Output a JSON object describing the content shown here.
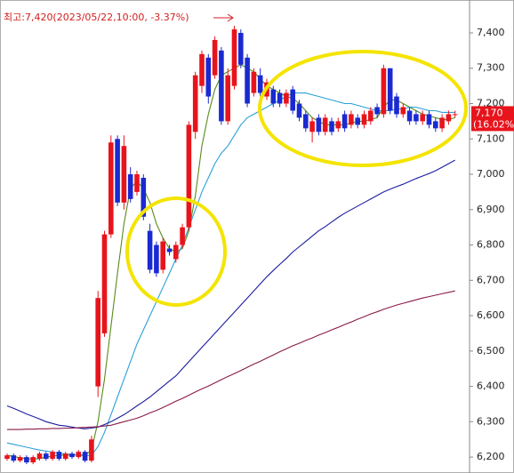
{
  "chart_data": {
    "type": "candlestick",
    "annotation": "최고:7,420(2023/05/22,10:00, -3.37%)",
    "ylim": [
      6155,
      7493
    ],
    "yticks": [
      {
        "value": 6200,
        "label": "6,200"
      },
      {
        "value": 6300,
        "label": "6,300"
      },
      {
        "value": 6400,
        "label": "6,400"
      },
      {
        "value": 6500,
        "label": "6,500"
      },
      {
        "value": 6600,
        "label": "6,600"
      },
      {
        "value": 6700,
        "label": "6,700"
      },
      {
        "value": 6800,
        "label": "6,800"
      },
      {
        "value": 6900,
        "label": "6,900"
      },
      {
        "value": 7000,
        "label": "7,000"
      },
      {
        "value": 7100,
        "label": "7,100"
      },
      {
        "value": 7200,
        "label": "7,200"
      },
      {
        "value": 7300,
        "label": "7,300"
      },
      {
        "value": 7400,
        "label": "7,400"
      }
    ],
    "up_color": "#e8141c",
    "down_color": "#1a2ad0",
    "open": [
      6195,
      6205,
      6190,
      6200,
      6185,
      6195,
      6210,
      6195,
      6215,
      6195,
      6210,
      6200,
      6215,
      6190,
      6400,
      6550,
      6830,
      7100,
      6920,
      7000,
      6950,
      6990,
      6840,
      6800,
      6730,
      6790,
      6760,
      6800,
      6850,
      7120,
      7250,
      7330,
      7280,
      7350,
      7150,
      7250,
      7400,
      7330,
      7230,
      7280,
      7220,
      7240,
      7230,
      7200,
      7240,
      7200,
      7170,
      7120,
      7160,
      7120,
      7150,
      7130,
      7170,
      7140,
      7160,
      7140,
      7150,
      7190,
      7170,
      7300,
      7220,
      7170,
      7180,
      7170,
      7150,
      7170,
      7150,
      7130,
      7150,
      7170
    ],
    "high": [
      6210,
      6210,
      6205,
      6205,
      6205,
      6215,
      6215,
      6220,
      6220,
      6215,
      6215,
      6220,
      6220,
      6260,
      6670,
      6840,
      7110,
      7110,
      7110,
      7020,
      7010,
      7000,
      6860,
      6810,
      6820,
      6800,
      6810,
      6860,
      7150,
      7290,
      7350,
      7340,
      7390,
      7360,
      7300,
      7420,
      7410,
      7340,
      7300,
      7300,
      7270,
      7250,
      7240,
      7240,
      7250,
      7210,
      7180,
      7160,
      7170,
      7170,
      7160,
      7160,
      7180,
      7180,
      7170,
      7180,
      7190,
      7200,
      7310,
      7300,
      7230,
      7200,
      7190,
      7180,
      7180,
      7180,
      7160,
      7170,
      7180,
      7180
    ],
    "low": [
      6190,
      6185,
      6185,
      6180,
      6180,
      6190,
      6190,
      6190,
      6190,
      6190,
      6195,
      6195,
      6185,
      6185,
      6370,
      6540,
      6820,
      6910,
      6900,
      6920,
      6940,
      6870,
      6720,
      6710,
      6720,
      6770,
      6750,
      6790,
      6840,
      7100,
      7230,
      7200,
      7270,
      7140,
      7140,
      7240,
      7300,
      7190,
      7220,
      7220,
      7210,
      7190,
      7190,
      7190,
      7170,
      7150,
      7120,
      7090,
      7110,
      7110,
      7110,
      7120,
      7120,
      7130,
      7130,
      7130,
      7140,
      7160,
      7160,
      7170,
      7160,
      7160,
      7140,
      7140,
      7140,
      7130,
      7120,
      7120,
      7140,
      7160
    ],
    "close": [
      6205,
      6190,
      6200,
      6185,
      6200,
      6210,
      6195,
      6215,
      6195,
      6210,
      6200,
      6215,
      6190,
      6250,
      6650,
      6830,
      7090,
      6920,
      7080,
      6930,
      7000,
      6880,
      6730,
      6720,
      6810,
      6780,
      6800,
      6850,
      7140,
      7280,
      7340,
      7220,
      7380,
      7150,
      7280,
      7410,
      7310,
      7200,
      7290,
      7230,
      7260,
      7200,
      7200,
      7230,
      7180,
      7160,
      7130,
      7150,
      7120,
      7160,
      7120,
      7150,
      7130,
      7170,
      7140,
      7170,
      7180,
      7170,
      7300,
      7180,
      7170,
      7190,
      7150,
      7150,
      7170,
      7140,
      7130,
      7160,
      7170,
      7170
    ],
    "lines": [
      {
        "color": "#5a8a1a",
        "values": [
          6205,
          6202,
          6198,
          6196,
          6194,
          6196,
          6200,
          6203,
          6205,
          6206,
          6205,
          6207,
          6205,
          6220,
          6300,
          6420,
          6570,
          6720,
          6860,
          6960,
          6980,
          6960,
          6920,
          6860,
          6820,
          6790,
          6780,
          6790,
          6840,
          6940,
          7080,
          7170,
          7240,
          7280,
          7290,
          7300,
          7310,
          7300,
          7290,
          7270,
          7250,
          7240,
          7230,
          7220,
          7215,
          7200,
          7180,
          7160,
          7150,
          7140,
          7140,
          7140,
          7140,
          7145,
          7150,
          7150,
          7155,
          7160,
          7190,
          7210,
          7210,
          7200,
          7190,
          7180,
          7170,
          7165,
          7160,
          7155,
          7155,
          7160
        ]
      },
      {
        "color": "#2aa0d8",
        "values": [
          6240,
          6236,
          6232,
          6228,
          6224,
          6220,
          6217,
          6214,
          6211,
          6209,
          6207,
          6205,
          6204,
          6205,
          6230,
          6270,
          6320,
          6370,
          6420,
          6470,
          6520,
          6560,
          6600,
          6640,
          6680,
          6720,
          6760,
          6800,
          6850,
          6900,
          6950,
          6990,
          7030,
          7060,
          7080,
          7110,
          7140,
          7160,
          7170,
          7180,
          7190,
          7200,
          7210,
          7220,
          7230,
          7230,
          7230,
          7225,
          7220,
          7215,
          7210,
          7205,
          7200,
          7200,
          7195,
          7190,
          7185,
          7180,
          7180,
          7180,
          7185,
          7185,
          7190,
          7190,
          7185,
          7180,
          7180,
          7175,
          7175,
          7175
        ]
      },
      {
        "color": "#1c1ca0",
        "values": [
          6345,
          6338,
          6330,
          6322,
          6315,
          6308,
          6300,
          6295,
          6290,
          6288,
          6285,
          6282,
          6280,
          6282,
          6285,
          6292,
          6300,
          6310,
          6320,
          6332,
          6345,
          6357,
          6370,
          6385,
          6400,
          6415,
          6430,
          6450,
          6470,
          6490,
          6510,
          6530,
          6550,
          6570,
          6590,
          6610,
          6630,
          6650,
          6670,
          6690,
          6710,
          6728,
          6745,
          6762,
          6780,
          6795,
          6810,
          6825,
          6840,
          6852,
          6865,
          6878,
          6890,
          6900,
          6910,
          6920,
          6930,
          6940,
          6950,
          6958,
          6965,
          6972,
          6980,
          6988,
          6995,
          7002,
          7010,
          7020,
          7030,
          7040
        ]
      },
      {
        "color": "#8a1a4a",
        "values": [
          6278,
          6278,
          6278,
          6279,
          6279,
          6280,
          6280,
          6281,
          6281,
          6282,
          6282,
          6283,
          6284,
          6285,
          6286,
          6288,
          6290,
          6295,
          6300,
          6305,
          6310,
          6317,
          6325,
          6332,
          6340,
          6349,
          6358,
          6366,
          6375,
          6384,
          6393,
          6401,
          6410,
          6419,
          6428,
          6436,
          6445,
          6454,
          6463,
          6471,
          6480,
          6489,
          6498,
          6506,
          6515,
          6522,
          6530,
          6537,
          6545,
          6552,
          6560,
          6567,
          6575,
          6582,
          6590,
          6597,
          6605,
          6611,
          6618,
          6624,
          6630,
          6635,
          6640,
          6645,
          6650,
          6654,
          6658,
          6662,
          6666,
          6670
        ]
      }
    ],
    "current": {
      "value": 7170,
      "label": "7,170"
    },
    "change": "(16.02%)"
  }
}
